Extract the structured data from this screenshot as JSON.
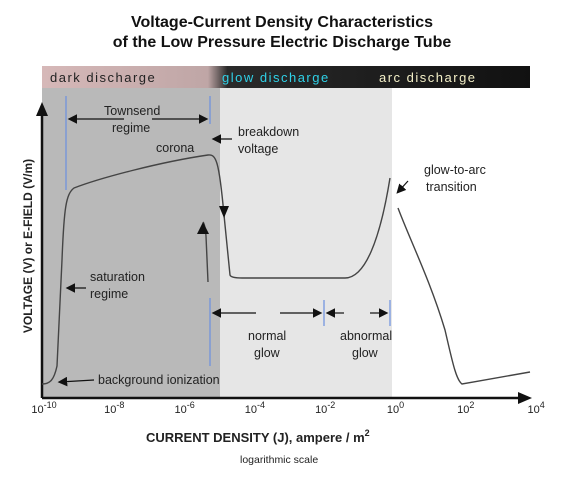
{
  "title_line1": "Voltage-Current Density Characteristics",
  "title_line2": "of the Low Pressure Electric Discharge Tube",
  "bands": {
    "dark": "dark discharge",
    "glow": "glow discharge",
    "arc": "arc discharge"
  },
  "annotations": {
    "townsend_line1": "Townsend",
    "townsend_line2": "regime",
    "corona": "corona",
    "breakdown_line1": "breakdown",
    "breakdown_line2": "voltage",
    "glow_to_arc_line1": "glow-to-arc",
    "glow_to_arc_line2": "transition",
    "saturation_line1": "saturation",
    "saturation_line2": "regime",
    "normal_line1": "normal",
    "normal_line2": "glow",
    "abnormal_line1": "abnormal",
    "abnormal_line2": "glow",
    "background": "background ionization"
  },
  "axes": {
    "ylabel": "VOLTAGE (V)  or  E-FIELD (V/m)",
    "xlabel": "CURRENT DENSITY (J), ampere / m",
    "xlabel_sup": "2",
    "xnote": "logarithmic scale",
    "ticks": [
      {
        "base": "10",
        "exp": "-10"
      },
      {
        "base": "10",
        "exp": "-8"
      },
      {
        "base": "10",
        "exp": "-6"
      },
      {
        "base": "10",
        "exp": "-4"
      },
      {
        "base": "10",
        "exp": "-2"
      },
      {
        "base": "10",
        "exp": "0"
      },
      {
        "base": "10",
        "exp": "2"
      },
      {
        "base": "10",
        "exp": "4"
      }
    ]
  },
  "colors": {
    "dark_band": "#b9b9b9",
    "glow_band": "#e6e6e6",
    "dark_bar": "#c9a8a8",
    "glow_text": "#2fd2e8",
    "arc_text": "#f4f0c8",
    "marker_line": "#6a8fe0"
  }
}
